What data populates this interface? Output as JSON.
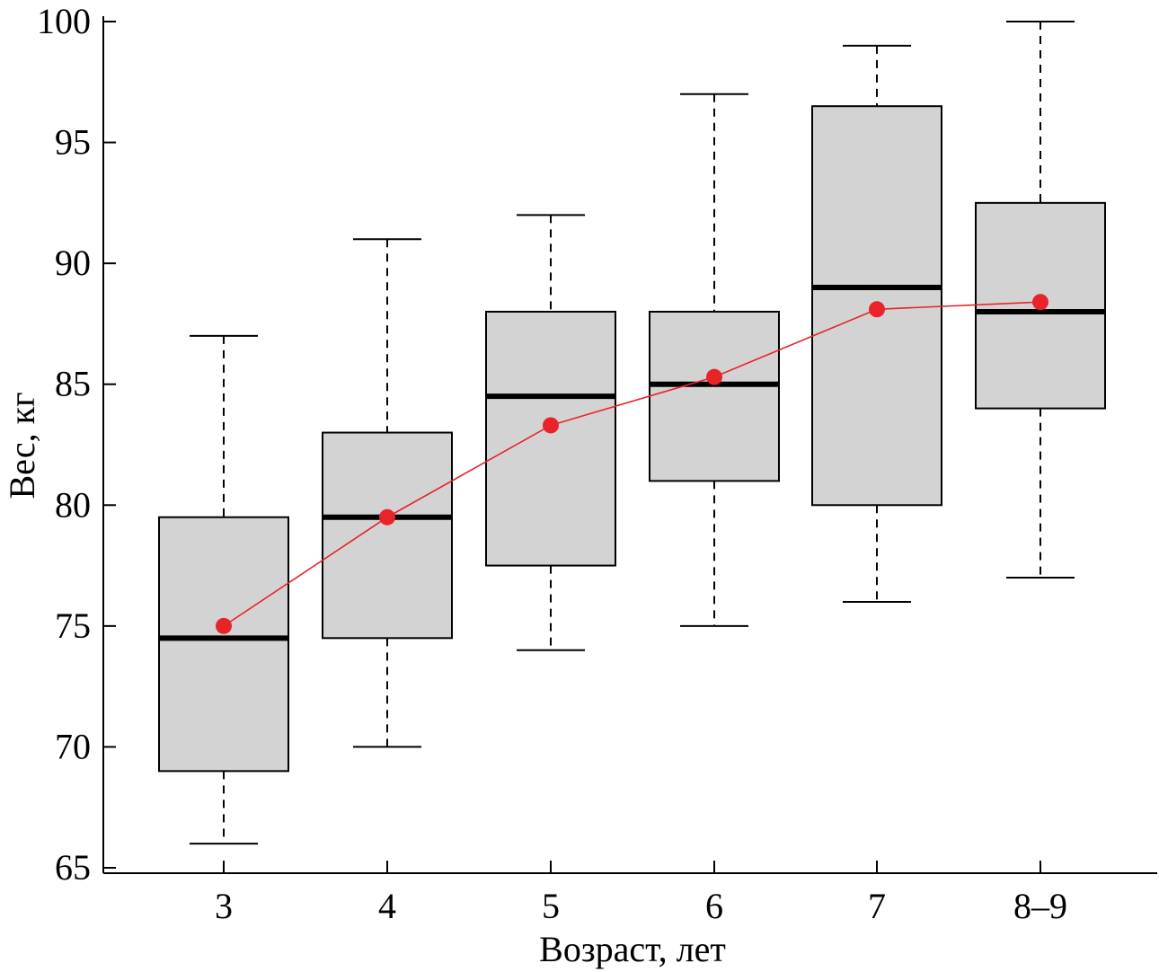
{
  "chart_data": {
    "type": "box",
    "xlabel": "Возраст, лет",
    "ylabel": "Вес, кг",
    "ylim": [
      65,
      100
    ],
    "yticks": [
      "65",
      "70",
      "75",
      "80",
      "85",
      "90",
      "95",
      "100"
    ],
    "categories": [
      "3",
      "4",
      "5",
      "6",
      "7",
      "8–9"
    ],
    "boxes": [
      {
        "whisker_low": 66,
        "q1": 69,
        "median": 74.5,
        "q3": 79.5,
        "whisker_high": 87
      },
      {
        "whisker_low": 70,
        "q1": 74.5,
        "median": 79.5,
        "q3": 83,
        "whisker_high": 91
      },
      {
        "whisker_low": 74,
        "q1": 77.5,
        "median": 84.5,
        "q3": 88,
        "whisker_high": 92
      },
      {
        "whisker_low": 75,
        "q1": 81,
        "median": 85,
        "q3": 88,
        "whisker_high": 97
      },
      {
        "whisker_low": 76,
        "q1": 80,
        "median": 89,
        "q3": 96.5,
        "whisker_high": 99
      },
      {
        "whisker_low": 77,
        "q1": 84,
        "median": 88,
        "q3": 92.5,
        "whisker_high": 100
      }
    ],
    "mean_series": {
      "values": [
        75,
        79.5,
        83.3,
        85.3,
        88.1,
        88.4
      ],
      "color": "#e8232a"
    },
    "box_fill": "#d3d3d3",
    "grid": false,
    "legend": "none"
  }
}
